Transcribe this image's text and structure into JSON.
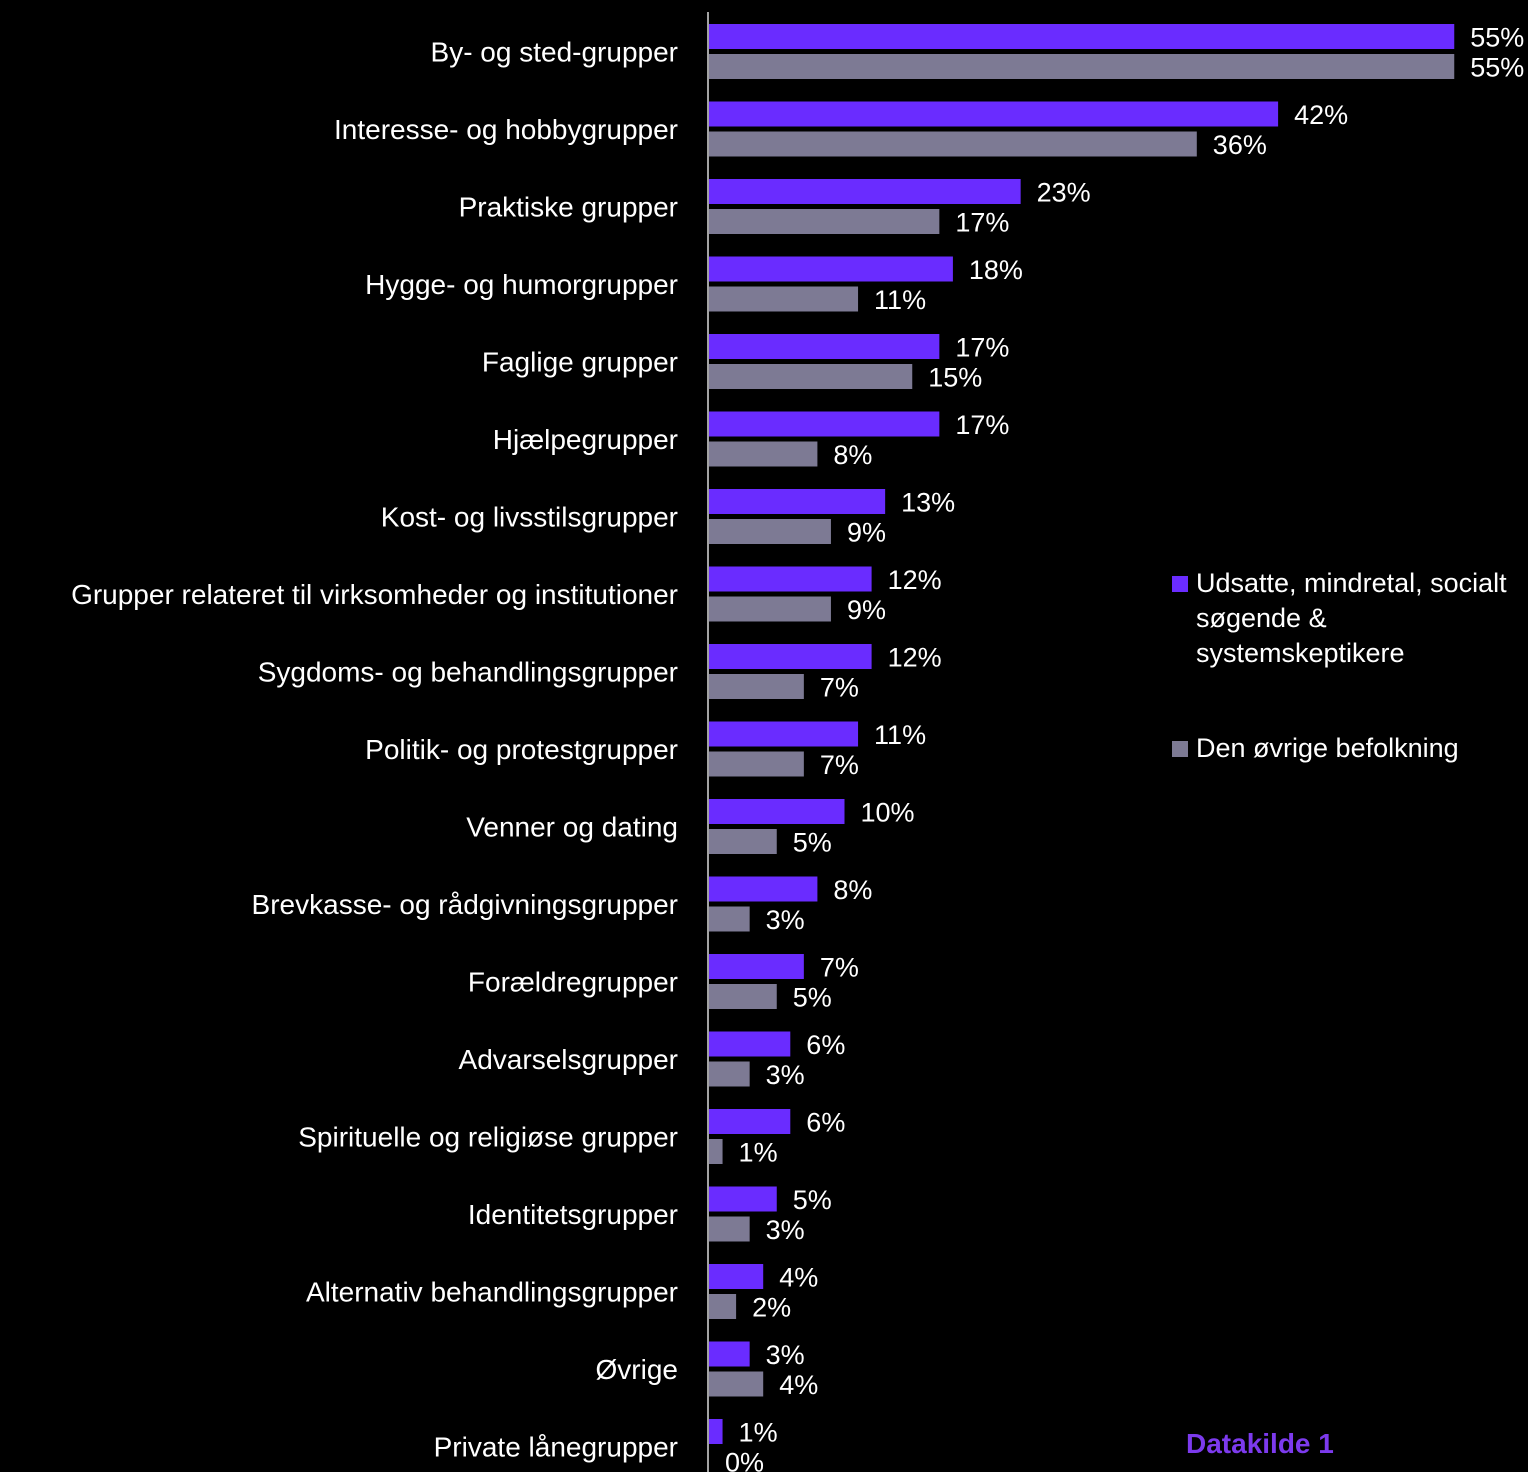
{
  "chart_data": {
    "type": "bar",
    "orientation": "horizontal",
    "categories": [
      "By- og sted-grupper",
      "Interesse- og hobbygrupper",
      "Praktiske grupper",
      "Hygge- og humorgrupper",
      "Faglige grupper",
      "Hjælpegrupper",
      "Kost- og livsstilsgrupper",
      "Grupper relateret til virksomheder og institutioner",
      "Sygdoms- og behandlingsgrupper",
      "Politik- og protestgrupper",
      "Venner og dating",
      "Brevkasse- og rådgivningsgrupper",
      "Forældregrupper",
      "Advarselsgrupper",
      "Spirituelle og religiøse grupper",
      "Identitetsgrupper",
      "Alternativ behandlingsgrupper",
      "Øvrige",
      "Private lånegrupper"
    ],
    "series": [
      {
        "name": "Udsatte, mindretal, socialt søgende & systemskeptikere",
        "color": "#6a2cff",
        "values": [
          55,
          42,
          23,
          18,
          17,
          17,
          13,
          12,
          12,
          11,
          10,
          8,
          7,
          6,
          6,
          5,
          4,
          3,
          1
        ]
      },
      {
        "name": "Den øvrige befolkning",
        "color": "#7d7a94",
        "values": [
          55,
          36,
          17,
          11,
          15,
          8,
          9,
          9,
          7,
          7,
          5,
          3,
          5,
          3,
          1,
          3,
          2,
          4,
          0
        ]
      }
    ],
    "value_suffix": "%",
    "xlim": [
      0,
      55
    ],
    "grid": false,
    "legend_position": "right",
    "title": "",
    "xlabel": "",
    "ylabel": ""
  },
  "source_note": "Datakilde 1"
}
